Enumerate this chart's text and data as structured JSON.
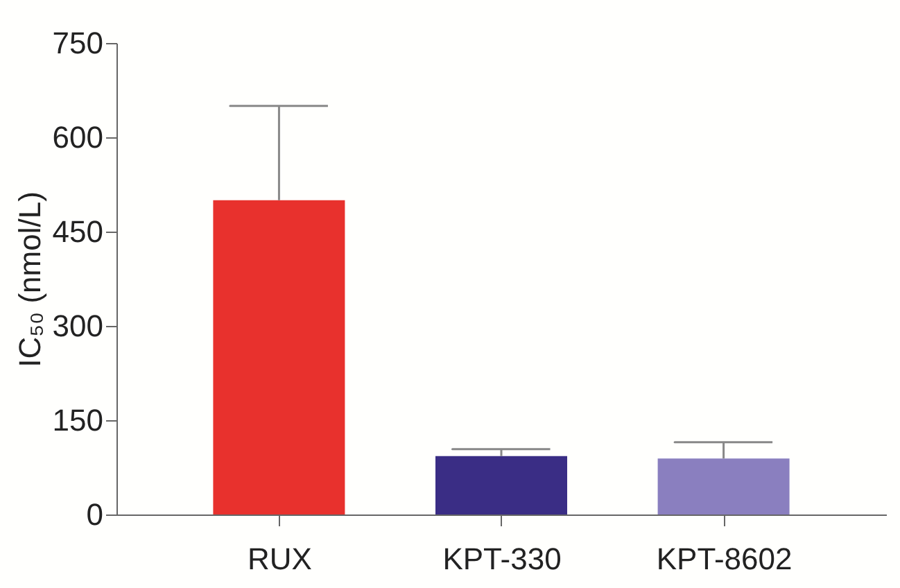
{
  "chart_data": {
    "type": "bar",
    "ylabel": "IC₅₀ (nmol/L)",
    "categories": [
      "RUX",
      "KPT-330",
      "KPT-8602"
    ],
    "values": [
      500,
      93,
      89
    ],
    "colors": [
      "#e8312d",
      "#3a2d85",
      "#8a7fbf"
    ],
    "errors": [
      [
        500,
        650
      ],
      [
        93,
        104
      ],
      [
        89,
        115
      ]
    ],
    "ylim": [
      0,
      750
    ],
    "yticks": [
      0,
      150,
      300,
      450,
      600,
      750
    ],
    "grid": false
  }
}
